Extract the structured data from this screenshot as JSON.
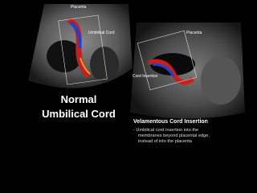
{
  "left_panel": {
    "labels": [
      "Placenta",
      "Umbilical Cord"
    ],
    "caption": [
      "Normal",
      "Umbilical Cord"
    ]
  },
  "right_panel": {
    "labels": [
      "Placenta",
      "Cord Insertion"
    ],
    "title": "Velamentous Cord Insertion",
    "bullet": [
      "- Umbilical cord insertion into the",
      "membranes beyond placental edge,",
      "instead of into the placenta"
    ]
  }
}
